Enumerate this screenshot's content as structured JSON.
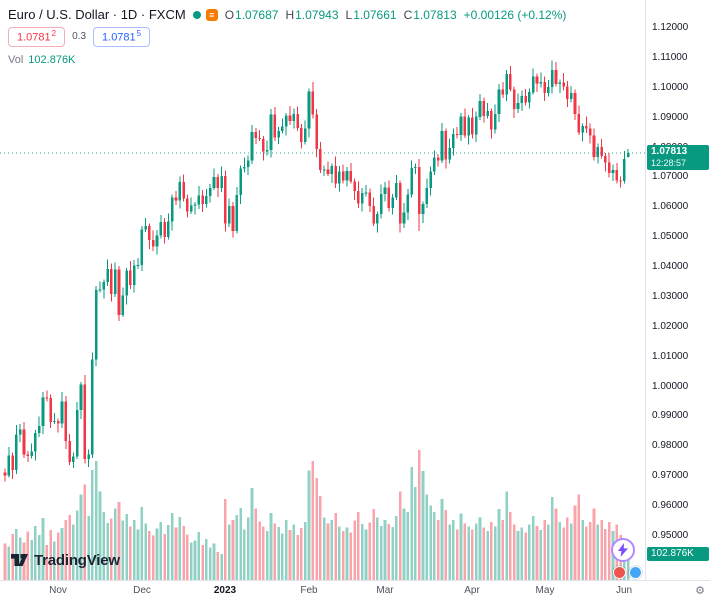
{
  "header": {
    "title": "Euro / U.S. Dollar · 1D · FXCM",
    "ohlc": {
      "o_label": "O",
      "o": "1.07687",
      "h_label": "H",
      "h": "1.07943",
      "l_label": "L",
      "l": "1.07661",
      "c_label": "C",
      "c": "1.07813",
      "change": "+0.00126 (+0.12%)"
    },
    "sell": {
      "price": "1.0781",
      "sup": "2"
    },
    "spread": "0.3",
    "buy": {
      "price": "1.0781",
      "sup": "5"
    },
    "vol_label": "Vol",
    "vol_value": "102.876K"
  },
  "branding": {
    "wordmark": "TradingView"
  },
  "icons": {
    "time_axis_settings": "⚙",
    "list_glyph": "≡"
  },
  "colors": {
    "up": "#089981",
    "down": "#f23645",
    "volume_up": "rgba(8,153,129,0.45)",
    "volume_down": "rgba(242,54,69,0.45)",
    "badge": "#089981",
    "sell": "#f23645",
    "buy": "#2962ff"
  },
  "chart_data": {
    "type": "candlestick",
    "symbol": "EURUSD",
    "timeframe": "1D",
    "source": "FXCM",
    "current": {
      "price": "1.07813",
      "countdown": "12:28:57",
      "volume_label": "102.876K",
      "direction": "up"
    },
    "y_axis": {
      "min": 0.95,
      "max": 1.12,
      "step": 0.01,
      "labels": [
        "1.12000",
        "1.11000",
        "1.10000",
        "1.09000",
        "1.08000",
        "1.07000",
        "1.06000",
        "1.05000",
        "1.04000",
        "1.03000",
        "1.02000",
        "1.01000",
        "1.00000",
        "0.99000",
        "0.98000",
        "0.97000",
        "0.96000",
        "0.95000"
      ]
    },
    "x_axis": {
      "labels": [
        {
          "label": "Nov",
          "i": 14
        },
        {
          "label": "Dec",
          "i": 36
        },
        {
          "label": "2023",
          "i": 58,
          "major": true
        },
        {
          "label": "Feb",
          "i": 80
        },
        {
          "label": "Mar",
          "i": 100
        },
        {
          "label": "Apr",
          "i": 123
        },
        {
          "label": "May",
          "i": 142
        },
        {
          "label": "Jun",
          "i": 163
        }
      ]
    },
    "candles": [
      [
        0.9712,
        0.9725,
        0.9682,
        0.9703
      ],
      [
        0.9703,
        0.9797,
        0.9695,
        0.977
      ],
      [
        0.977,
        0.9779,
        0.9691,
        0.9721
      ],
      [
        0.9721,
        0.9872,
        0.9707,
        0.984
      ],
      [
        0.984,
        0.9875,
        0.9814,
        0.9857
      ],
      [
        0.9857,
        0.9881,
        0.9761,
        0.9772
      ],
      [
        0.9772,
        0.9785,
        0.9747,
        0.9768
      ],
      [
        0.9768,
        0.981,
        0.976,
        0.9783
      ],
      [
        0.9783,
        0.9854,
        0.9753,
        0.9845
      ],
      [
        0.9845,
        0.99,
        0.9831,
        0.9868
      ],
      [
        0.9868,
        0.9981,
        0.9842,
        0.9963
      ],
      [
        0.9963,
        0.9987,
        0.995,
        0.9961
      ],
      [
        0.9961,
        0.9974,
        0.9861,
        0.9882
      ],
      [
        0.9882,
        0.9911,
        0.9874,
        0.9884
      ],
      [
        0.9884,
        0.9893,
        0.9846,
        0.9876
      ],
      [
        0.9876,
        0.9982,
        0.9862,
        0.995
      ],
      [
        0.995,
        0.9968,
        0.9791,
        0.9817
      ],
      [
        0.9817,
        0.9841,
        0.9737,
        0.9748
      ],
      [
        0.9748,
        0.9779,
        0.9727,
        0.9766
      ],
      [
        0.9766,
        0.9948,
        0.9758,
        0.9921
      ],
      [
        0.9921,
        1.0016,
        0.9891,
        1.0007
      ],
      [
        1.0007,
        1.0039,
        0.9743,
        0.9757
      ],
      [
        0.9757,
        0.979,
        0.9731,
        0.9772
      ],
      [
        0.9772,
        1.0114,
        0.9761,
        1.009
      ],
      [
        1.009,
        1.0336,
        1.0069,
        1.0323
      ],
      [
        1.0323,
        1.0352,
        1.0315,
        1.0325
      ],
      [
        1.0325,
        1.0359,
        1.0295,
        1.035
      ],
      [
        1.035,
        1.0426,
        1.0336,
        1.0394
      ],
      [
        1.0394,
        1.0412,
        1.0284,
        1.031
      ],
      [
        1.031,
        1.0415,
        1.0299,
        1.0391
      ],
      [
        1.0391,
        1.0404,
        1.0219,
        1.024
      ],
      [
        1.024,
        1.0332,
        1.0232,
        1.0305
      ],
      [
        1.0305,
        1.0397,
        1.0275,
        1.0388
      ],
      [
        1.0388,
        1.042,
        1.0326,
        1.034
      ],
      [
        1.034,
        1.0423,
        1.0314,
        1.0405
      ],
      [
        1.0405,
        1.0431,
        1.0394,
        1.0407
      ],
      [
        1.0407,
        1.0538,
        1.0386,
        1.0525
      ],
      [
        1.0525,
        1.0564,
        1.0517,
        1.0537
      ],
      [
        1.0537,
        1.0546,
        1.046,
        1.049
      ],
      [
        1.049,
        1.0522,
        1.0454,
        1.0468
      ],
      [
        1.0468,
        1.0524,
        1.0442,
        1.0506
      ],
      [
        1.0506,
        1.0575,
        1.0495,
        1.0551
      ],
      [
        1.0551,
        1.0564,
        1.0479,
        1.05
      ],
      [
        1.05,
        1.0579,
        1.0492,
        1.0552
      ],
      [
        1.0552,
        1.0642,
        1.0522,
        1.0633
      ],
      [
        1.0633,
        1.0654,
        1.0608,
        1.0622
      ],
      [
        1.0622,
        1.0703,
        1.0596,
        1.0685
      ],
      [
        1.0685,
        1.0709,
        1.0619,
        1.063
      ],
      [
        1.063,
        1.0643,
        1.0565,
        1.0586
      ],
      [
        1.0586,
        1.0633,
        1.0578,
        1.0606
      ],
      [
        1.0606,
        1.0618,
        1.0576,
        1.0609
      ],
      [
        1.0609,
        1.0672,
        1.0595,
        1.064
      ],
      [
        1.064,
        1.0658,
        1.0585,
        1.0611
      ],
      [
        1.0611,
        1.0661,
        1.06,
        1.0637
      ],
      [
        1.0637,
        1.0678,
        1.0616,
        1.0665
      ],
      [
        1.0665,
        1.0729,
        1.0657,
        1.0702
      ],
      [
        1.0702,
        1.0711,
        1.0635,
        1.0665
      ],
      [
        1.0665,
        1.0737,
        1.0651,
        1.0705
      ],
      [
        1.0705,
        1.0723,
        1.0519,
        1.0545
      ],
      [
        1.0545,
        1.0629,
        1.0534,
        1.0605
      ],
      [
        1.0605,
        1.0618,
        1.0499,
        1.052
      ],
      [
        1.052,
        1.0668,
        1.0512,
        1.0641
      ],
      [
        1.0641,
        1.0739,
        1.0611,
        1.073
      ],
      [
        1.073,
        1.0766,
        1.0716,
        1.0734
      ],
      [
        1.0734,
        1.0774,
        1.0708,
        1.0756
      ],
      [
        1.0756,
        1.0876,
        1.0745,
        1.0852
      ],
      [
        1.0852,
        1.0865,
        1.0811,
        1.0832
      ],
      [
        1.0832,
        1.0859,
        1.0821,
        1.0829
      ],
      [
        1.0829,
        1.0838,
        1.0757,
        1.0787
      ],
      [
        1.0787,
        1.0824,
        1.0773,
        1.0792
      ],
      [
        1.0792,
        1.0929,
        1.0766,
        1.0911
      ],
      [
        1.0911,
        1.0935,
        1.0822,
        1.0833
      ],
      [
        1.0833,
        1.0868,
        1.0812,
        1.0855
      ],
      [
        1.0855,
        1.0897,
        1.0847,
        1.087
      ],
      [
        1.087,
        1.0916,
        1.084,
        1.0907
      ],
      [
        1.0907,
        1.0939,
        1.0875,
        1.0889
      ],
      [
        1.0889,
        1.0931,
        1.0863,
        1.0913
      ],
      [
        1.0913,
        1.0937,
        1.0855,
        1.0866
      ],
      [
        1.0866,
        1.0879,
        1.0797,
        1.0818
      ],
      [
        1.0818,
        1.089,
        1.081,
        1.0863
      ],
      [
        1.0863,
        1.0997,
        1.0833,
        1.0988
      ],
      [
        1.0988,
        1.102,
        1.0897,
        1.0911
      ],
      [
        1.0911,
        1.0929,
        1.0769,
        1.0795
      ],
      [
        1.0795,
        1.0819,
        1.0714,
        1.0725
      ],
      [
        1.0725,
        1.074,
        1.0704,
        1.0727
      ],
      [
        1.0727,
        1.0754,
        1.0704,
        1.0712
      ],
      [
        1.0712,
        1.0747,
        1.0682,
        1.0738
      ],
      [
        1.0738,
        1.077,
        1.0665,
        1.0679
      ],
      [
        1.0679,
        1.0738,
        1.0653,
        1.072
      ],
      [
        1.072,
        1.0744,
        1.0679,
        1.069
      ],
      [
        1.069,
        1.0735,
        1.0669,
        1.0722
      ],
      [
        1.0722,
        1.0749,
        1.0679,
        1.0687
      ],
      [
        1.0687,
        1.0696,
        1.0624,
        1.0654
      ],
      [
        1.0654,
        1.0686,
        1.0598,
        1.0612
      ],
      [
        1.0612,
        1.0665,
        1.0586,
        1.0647
      ],
      [
        1.0647,
        1.0674,
        1.0636,
        1.065
      ],
      [
        1.065,
        1.0663,
        1.0584,
        1.0605
      ],
      [
        1.0605,
        1.0632,
        1.0538,
        1.0546
      ],
      [
        1.0546,
        1.0586,
        1.0516,
        1.0577
      ],
      [
        1.0577,
        1.0677,
        1.0563,
        1.0645
      ],
      [
        1.0645,
        1.0684,
        1.0619,
        1.0666
      ],
      [
        1.0666,
        1.069,
        1.0586,
        1.0597
      ],
      [
        1.0597,
        1.0645,
        1.0576,
        1.0632
      ],
      [
        1.0632,
        1.0708,
        1.0624,
        1.0681
      ],
      [
        1.0681,
        1.069,
        1.0515,
        1.0545
      ],
      [
        1.0545,
        1.0615,
        1.0531,
        1.0583
      ],
      [
        1.0583,
        1.0661,
        1.0557,
        1.0643
      ],
      [
        1.0643,
        1.0756,
        1.0632,
        1.0732
      ],
      [
        1.0732,
        1.0747,
        1.0711,
        1.0734
      ],
      [
        1.0734,
        1.0761,
        1.052,
        1.0578
      ],
      [
        1.0578,
        1.062,
        1.0548,
        1.0611
      ],
      [
        1.0611,
        1.0697,
        1.0597,
        1.0665
      ],
      [
        1.0665,
        1.0737,
        1.0639,
        1.0719
      ],
      [
        1.0719,
        1.079,
        1.0708,
        1.0766
      ],
      [
        1.0766,
        1.0779,
        1.0736,
        1.0757
      ],
      [
        1.0757,
        1.0882,
        1.0749,
        1.0855
      ],
      [
        1.0855,
        1.0864,
        1.073,
        1.076
      ],
      [
        1.076,
        1.0831,
        1.0746,
        1.0799
      ],
      [
        1.0799,
        1.0863,
        1.0773,
        1.0845
      ],
      [
        1.0845,
        1.0869,
        1.0831,
        1.0842
      ],
      [
        1.0842,
        1.0916,
        1.0821,
        1.0903
      ],
      [
        1.0903,
        1.093,
        1.0832,
        1.084
      ],
      [
        1.084,
        1.0909,
        1.081,
        1.09
      ],
      [
        1.09,
        1.0932,
        1.083,
        1.0844
      ],
      [
        1.0844,
        1.0921,
        1.0818,
        1.0903
      ],
      [
        1.0903,
        1.0979,
        1.0892,
        1.0955
      ],
      [
        1.0955,
        1.0968,
        1.0884,
        1.0905
      ],
      [
        1.0905,
        1.0949,
        1.0897,
        1.0922
      ],
      [
        1.0922,
        1.0931,
        1.0831,
        1.0861
      ],
      [
        1.0861,
        1.0944,
        1.0847,
        1.0912
      ],
      [
        1.0912,
        1.1013,
        1.0886,
        1.0995
      ],
      [
        1.0995,
        1.1019,
        1.0966,
        1.0977
      ],
      [
        1.0977,
        1.1059,
        1.0956,
        1.1046
      ],
      [
        1.1046,
        1.1073,
        1.0987,
        1.0995
      ],
      [
        1.0995,
        1.1004,
        1.0899,
        1.0929
      ],
      [
        1.0929,
        1.0981,
        1.0915,
        1.0949
      ],
      [
        1.0949,
        1.099,
        1.0923,
        1.0972
      ],
      [
        1.0972,
        1.0996,
        1.094,
        1.0951
      ],
      [
        1.0951,
        1.0998,
        1.093,
        1.0985
      ],
      [
        1.0985,
        1.1065,
        1.0977,
        1.1038
      ],
      [
        1.1038,
        1.1047,
        1.0985,
        1.1015
      ],
      [
        1.1015,
        1.1051,
        1.1001,
        1.1019
      ],
      [
        1.1019,
        1.1037,
        1.0956,
        1.0982
      ],
      [
        1.0982,
        1.1026,
        1.0971,
        1.1002
      ],
      [
        1.1002,
        1.1092,
        1.0981,
        1.106
      ],
      [
        1.106,
        1.1087,
        1.1005,
        1.1013
      ],
      [
        1.1013,
        1.1027,
        1.0983,
        1.1018
      ],
      [
        1.1018,
        1.105,
        1.099,
        1.1004
      ],
      [
        1.1004,
        1.1022,
        1.0936,
        1.0962
      ],
      [
        1.0962,
        1.1006,
        1.0951,
        1.0982
      ],
      [
        1.0982,
        1.0995,
        1.0892,
        1.0913
      ],
      [
        1.0913,
        1.094,
        1.0842,
        1.085
      ],
      [
        1.085,
        1.0881,
        1.082,
        1.0872
      ],
      [
        1.0872,
        1.0904,
        1.0849,
        1.0863
      ],
      [
        1.0863,
        1.0881,
        1.0814,
        1.084
      ],
      [
        1.084,
        1.0864,
        1.0757,
        1.0768
      ],
      [
        1.0768,
        1.0814,
        1.0747,
        1.0801
      ],
      [
        1.0801,
        1.0828,
        1.0764,
        1.0772
      ],
      [
        1.0772,
        1.0781,
        1.072,
        1.075
      ],
      [
        1.075,
        1.0782,
        1.07,
        1.0714
      ],
      [
        1.0714,
        1.0743,
        1.0688,
        1.0725
      ],
      [
        1.0725,
        1.0749,
        1.0679,
        1.069
      ],
      [
        1.069,
        1.0703,
        1.0667,
        1.0688
      ],
      [
        1.0688,
        1.0789,
        1.068,
        1.0762
      ],
      [
        1.07687,
        1.07943,
        1.07661,
        1.07813
      ]
    ],
    "volumes": [
      96,
      88,
      121,
      134,
      112,
      99,
      127,
      105,
      142,
      118,
      163,
      92,
      131,
      101,
      124,
      137,
      158,
      171,
      146,
      182,
      224,
      251,
      168,
      288,
      312,
      232,
      178,
      149,
      161,
      187,
      205,
      156,
      173,
      140,
      158,
      132,
      191,
      148,
      129,
      117,
      135,
      152,
      121,
      144,
      176,
      138,
      165,
      142,
      119,
      98,
      104,
      126,
      92,
      108,
      85,
      96,
      74,
      68,
      212,
      146,
      158,
      171,
      189,
      132,
      164,
      241,
      187,
      154,
      141,
      128,
      176,
      148,
      139,
      122,
      158,
      131,
      146,
      118,
      137,
      152,
      287,
      312,
      268,
      221,
      164,
      148,
      158,
      176,
      141,
      129,
      138,
      124,
      156,
      178,
      147,
      132,
      151,
      186,
      164,
      142,
      158,
      147,
      139,
      168,
      232,
      187,
      178,
      296,
      244,
      341,
      286,
      224,
      196,
      178,
      158,
      212,
      184,
      146,
      158,
      132,
      174,
      148,
      141,
      132,
      148,
      164,
      138,
      128,
      152,
      141,
      186,
      158,
      232,
      178,
      146,
      129,
      138,
      124,
      146,
      168,
      142,
      131,
      158,
      146,
      218,
      187,
      152,
      138,
      164,
      148,
      196,
      224,
      158,
      141,
      152,
      188,
      146,
      158,
      134,
      152,
      128,
      146,
      118,
      96,
      102.876
    ],
    "volume_unit": "K"
  }
}
